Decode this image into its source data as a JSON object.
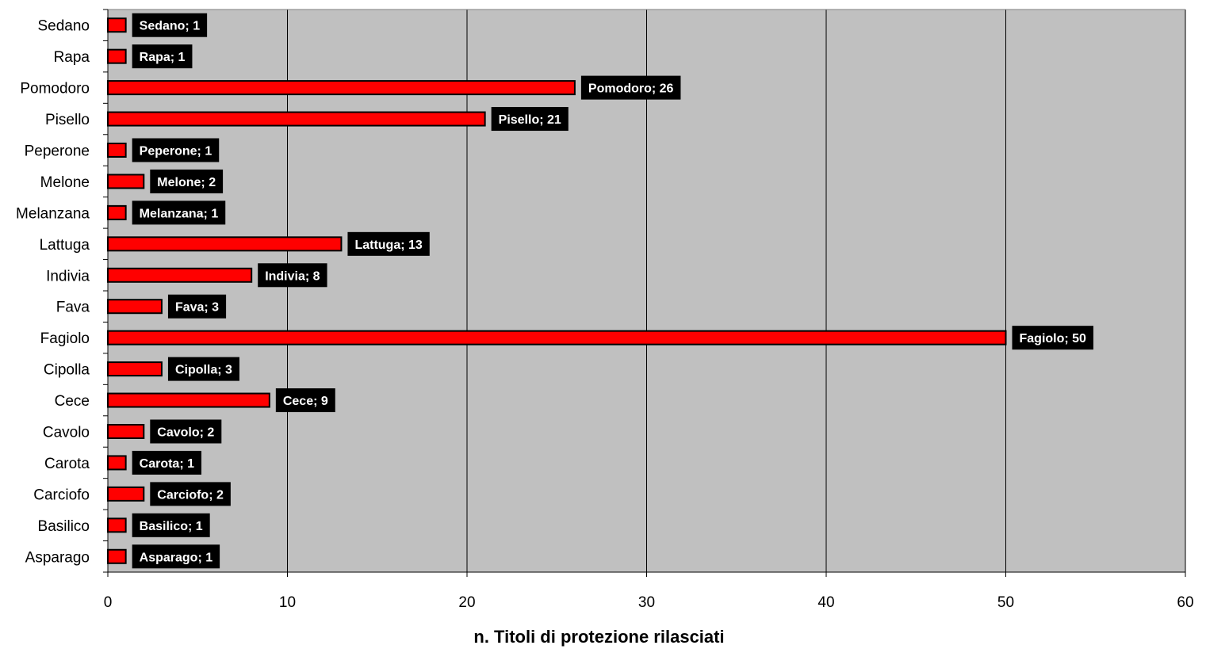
{
  "chart_data": {
    "type": "bar",
    "orientation": "horizontal",
    "categories": [
      "Sedano",
      "Rapa",
      "Pomodoro",
      "Pisello",
      "Peperone",
      "Melone",
      "Melanzana",
      "Lattuga",
      "Indivia",
      "Fava",
      "Fagiolo",
      "Cipolla",
      "Cece",
      "Cavolo",
      "Carota",
      "Carciofo",
      "Basilico",
      "Asparago"
    ],
    "values": [
      1,
      1,
      26,
      21,
      1,
      2,
      1,
      13,
      8,
      3,
      50,
      3,
      9,
      2,
      1,
      2,
      1,
      1
    ],
    "data_labels": [
      "Sedano; 1",
      "Rapa; 1",
      "Pomodoro; 26",
      "Pisello; 21",
      "Peperone; 1",
      "Melone; 2",
      "Melanzana; 1",
      "Lattuga; 13",
      "Indivia; 8",
      "Fava; 3",
      "Fagiolo; 50",
      "Cipolla; 3",
      "Cece; 9",
      "Cavolo; 2",
      "Carota; 1",
      "Carciofo; 2",
      "Basilico; 1",
      "Asparago; 1"
    ],
    "xlabel": "n. Titoli di protezione rilasciati",
    "ylabel": "",
    "xlim": [
      0,
      60
    ],
    "xticks": [
      0,
      10,
      20,
      30,
      40,
      50,
      60
    ],
    "grid": "vertical major gridlines",
    "legend": "none",
    "colors": {
      "bar": "#ff0000",
      "bar_border": "#000000",
      "plot_background": "#c0c0c0",
      "data_label_background": "#000000",
      "data_label_text": "#ffffff",
      "gridline": "#000000"
    }
  }
}
